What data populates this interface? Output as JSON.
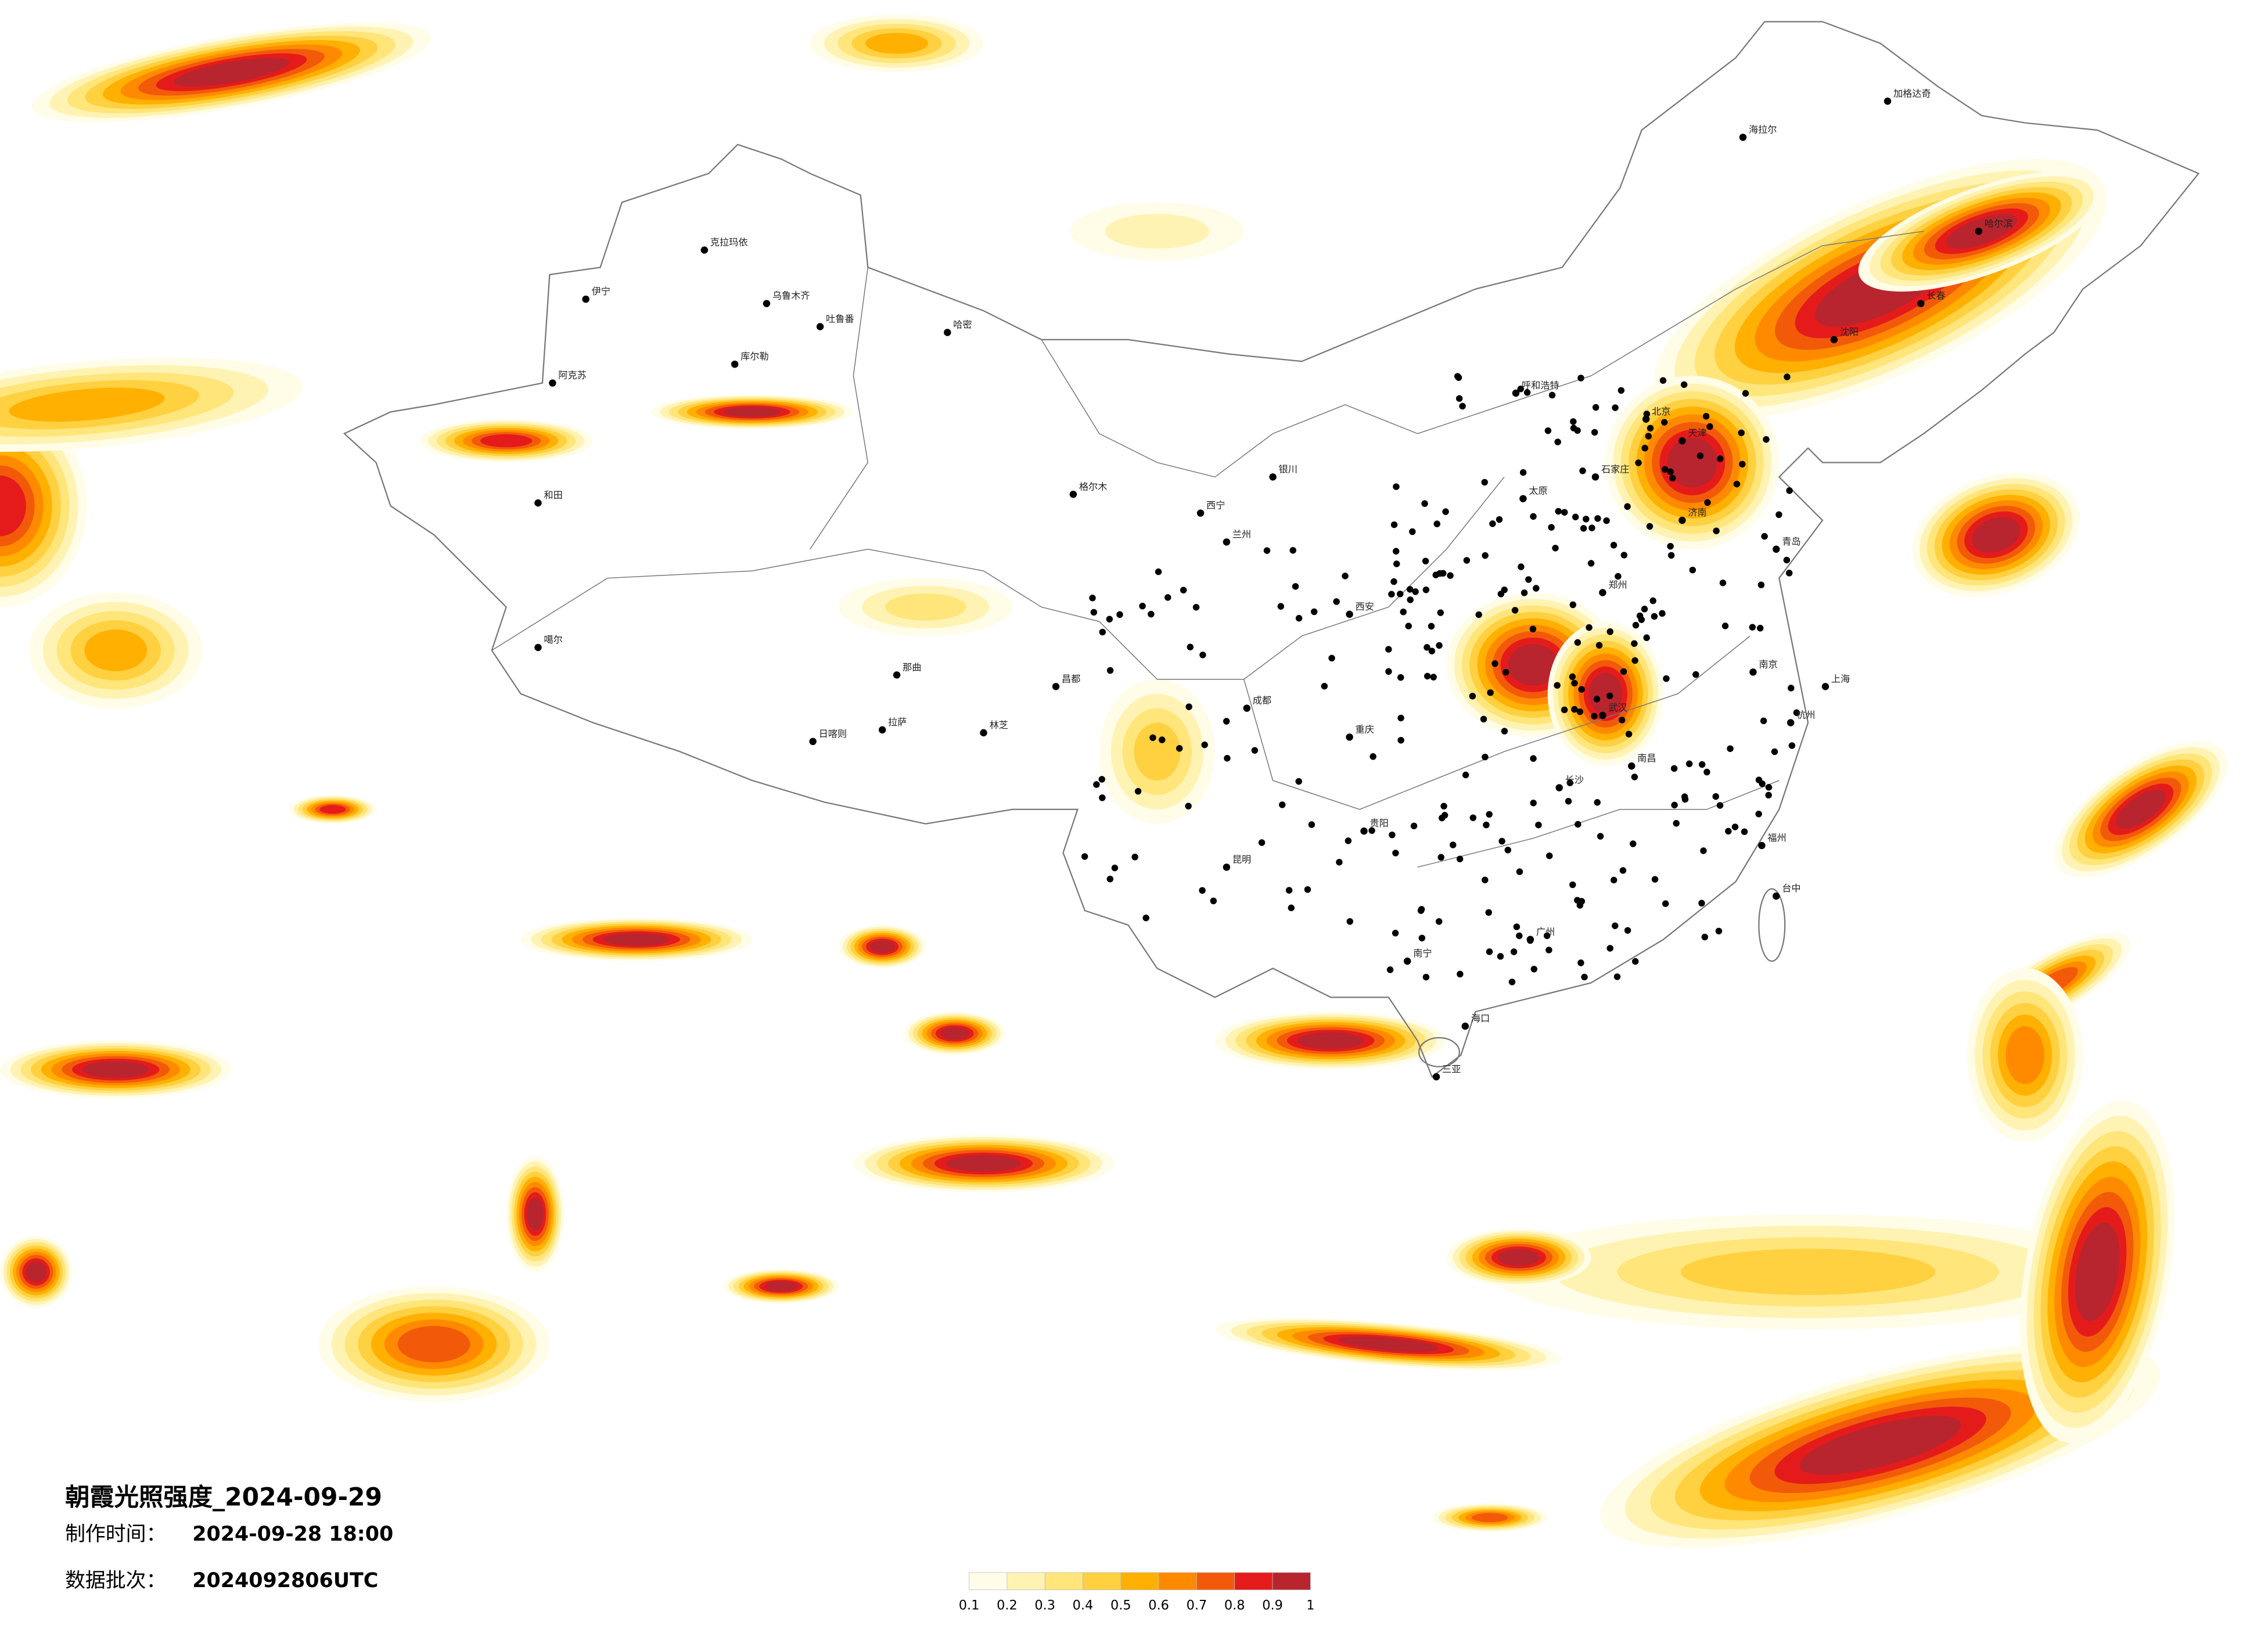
{
  "title": "朝霞光照强度_2024-09-29",
  "production_time": {
    "label": "制作时间：",
    "value": "2024-09-28 18:00"
  },
  "batch": {
    "label": "数据批次：",
    "value": "2024092806UTC"
  },
  "legend": {
    "ticks": [
      0.1,
      0.2,
      0.3,
      0.4,
      0.5,
      0.6,
      0.7,
      0.8,
      0.9,
      1
    ],
    "colors": [
      "#fffce8",
      "#fff3b3",
      "#ffe57a",
      "#ffd040",
      "#ffb000",
      "#ff8a00",
      "#f25a0a",
      "#e51b1b",
      "#b8252e"
    ]
  },
  "cities": [
    "克拉玛依",
    "乌鲁木齐",
    "吐鲁番",
    "哈密",
    "伊宁",
    "库尔勒",
    "阿克苏",
    "和田",
    "噶尔",
    "拉萨",
    "日喀则",
    "林芝",
    "那曲",
    "昌都",
    "格尔木",
    "西宁",
    "兰州",
    "银川",
    "呼和浩特",
    "北京",
    "天津",
    "石家庄",
    "太原",
    "西安",
    "郑州",
    "武汉",
    "成都",
    "重庆",
    "昆明",
    "贵阳",
    "南宁",
    "广州",
    "长沙",
    "南昌",
    "福州",
    "杭州",
    "南京",
    "上海",
    "济南",
    "青岛",
    "沈阳",
    "长春",
    "哈尔滨",
    "海拉尔",
    "加格达奇",
    "台中",
    "海口",
    "三亚"
  ]
}
